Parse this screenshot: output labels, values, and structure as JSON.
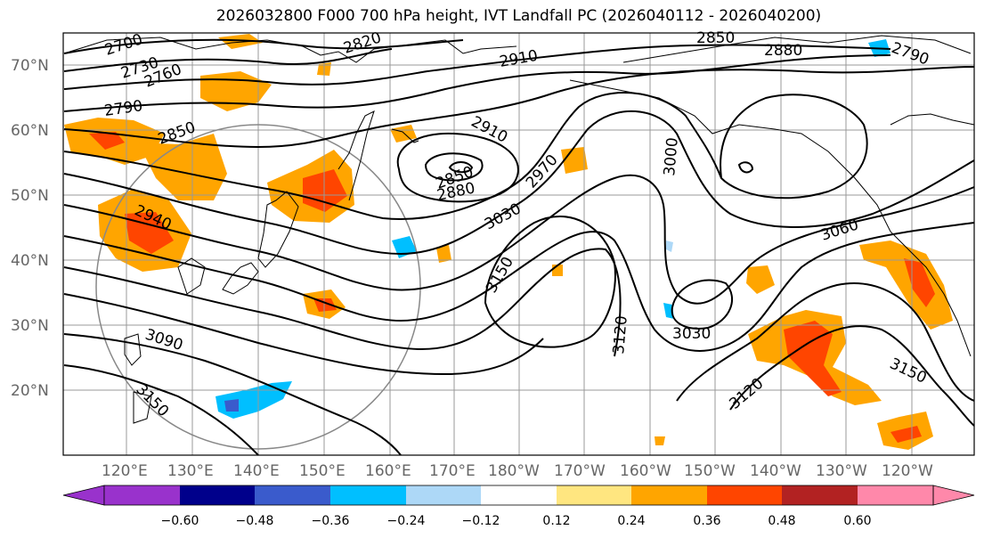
{
  "title": "2026032800 F000 700 hPa height, IVT Landfall PC (2026040112 - 2026040200)",
  "lat_labels": [
    "70°N",
    "60°N",
    "50°N",
    "40°N",
    "30°N",
    "20°N"
  ],
  "lon_labels": [
    "120°E",
    "130°E",
    "140°E",
    "150°E",
    "160°E",
    "170°E",
    "180°W",
    "170°W",
    "160°W",
    "150°W",
    "140°W",
    "130°W",
    "120°W"
  ],
  "contour_labels": [
    "2700",
    "2730",
    "2760",
    "2790",
    "2820",
    "2850",
    "2850",
    "2880",
    "2910",
    "2910",
    "2940",
    "2970",
    "3000",
    "3030",
    "3030",
    "3060",
    "3090",
    "3120",
    "3120",
    "3150",
    "3150",
    "3150",
    "2850",
    "2880",
    "2790"
  ],
  "colorbar": {
    "tick_labels": [
      "−0.60",
      "−0.48",
      "−0.36",
      "−0.24",
      "−0.12",
      "0.12",
      "0.24",
      "0.36",
      "0.48",
      "0.60"
    ],
    "colors": [
      "#9932cc",
      "#00008b",
      "#3a5bcc",
      "#00bfff",
      "#add8f7",
      "#ffffff",
      "#ffe680",
      "#ffa500",
      "#ff4500",
      "#b22222",
      "#ff88aa"
    ]
  }
}
